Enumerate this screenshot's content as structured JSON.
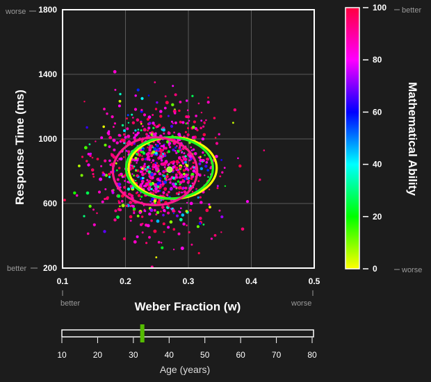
{
  "chart_data": {
    "type": "scatter",
    "title": "",
    "xlabel": "Weber Fraction (w)",
    "ylabel": "Response Time (ms)",
    "xlim": [
      0.1,
      0.5
    ],
    "ylim": [
      200,
      1800
    ],
    "x_ticks": [
      "0.1",
      "0.2",
      "0.3",
      "0.4",
      "0.5"
    ],
    "y_ticks": [
      "200",
      "600",
      "1000",
      "1400",
      "1800"
    ],
    "x_annotations": {
      "low": "better",
      "high": "worse"
    },
    "y_annotations": {
      "low": "better",
      "high": "worse"
    },
    "grid": true,
    "point_cloud": {
      "count": 950,
      "x_mean": 0.25,
      "x_sd": 0.05,
      "y_mean": 820,
      "y_sd": 190,
      "note_color_by": "mathematical ability"
    },
    "ellipses": [
      {
        "color": "#ff1a8c",
        "cx": 0.247,
        "cy": 800,
        "rx": 0.067,
        "ry": 210
      },
      {
        "color": "#22ff22",
        "cx": 0.27,
        "cy": 820,
        "rx": 0.069,
        "ry": 190
      },
      {
        "color": "#ffff00",
        "cx": 0.275,
        "cy": 820,
        "rx": 0.07,
        "ry": 190
      }
    ],
    "center_point": {
      "x": 0.27,
      "y": 810
    },
    "colorbar": {
      "label": "Mathematical Ability",
      "range": [
        0,
        100
      ],
      "ticks": [
        "0",
        "20",
        "40",
        "60",
        "80",
        "100"
      ],
      "low_annotation": "worse",
      "high_annotation": "better",
      "colors": [
        "#ffff00",
        "#00ff00",
        "#00ffff",
        "#0000ff",
        "#ff00ff",
        "#ff0040"
      ]
    }
  },
  "age_slider": {
    "label": "Age (years)",
    "min": 10,
    "max": 80,
    "value": 32.5,
    "ticks": [
      "10",
      "20",
      "30",
      "40",
      "50",
      "60",
      "70",
      "80"
    ],
    "handle_color": "#55bb00"
  }
}
